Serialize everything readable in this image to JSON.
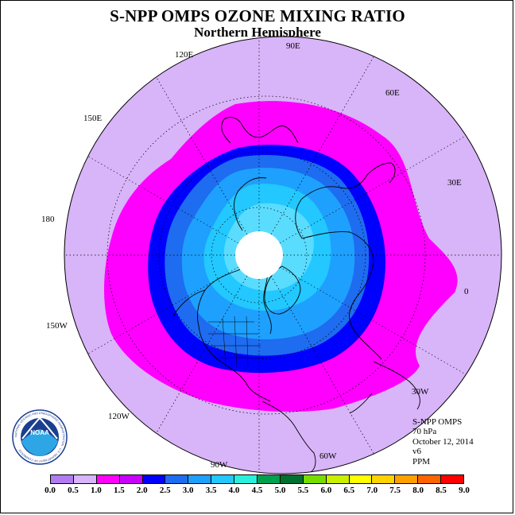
{
  "title": "S-NPP OMPS OZONE MIXING RATIO",
  "subtitle": "Northern Hemisphere",
  "longitude_labels": [
    "0",
    "30E",
    "60E",
    "90E",
    "120E",
    "150E",
    "180",
    "150W",
    "120W",
    "90W",
    "60W",
    "30W"
  ],
  "info": {
    "instrument": "S-NPP OMPS",
    "pressure_level": "70 hPa",
    "date": "October 12, 2014",
    "version": "v6",
    "unit": "PPM"
  },
  "colorbar": {
    "colors": [
      "#b07cf0",
      "#d8b4f8",
      "#ff00ff",
      "#c800ff",
      "#0000ff",
      "#1e6cf0",
      "#1ea0ff",
      "#22c8ff",
      "#28f0dc",
      "#00a050",
      "#007030",
      "#78dc00",
      "#c8f000",
      "#ffff00",
      "#ffd200",
      "#ffa000",
      "#ff6400",
      "#ff0000",
      "#8b5a2b"
    ],
    "tick_labels": [
      "0.0",
      "0.5",
      "1.0",
      "1.5",
      "2.0",
      "2.5",
      "3.0",
      "3.5",
      "4.0",
      "4.5",
      "5.0",
      "5.5",
      "6.0",
      "6.5",
      "7.0",
      "7.5",
      "8.0",
      "8.5",
      "9.0"
    ]
  },
  "logo_text": "NOAA",
  "logo_ring_text": "NATIONAL OCEANIC AND ATMOSPHERIC ADMINISTRATION · U.S. DEPARTMENT OF COMMERCE"
}
